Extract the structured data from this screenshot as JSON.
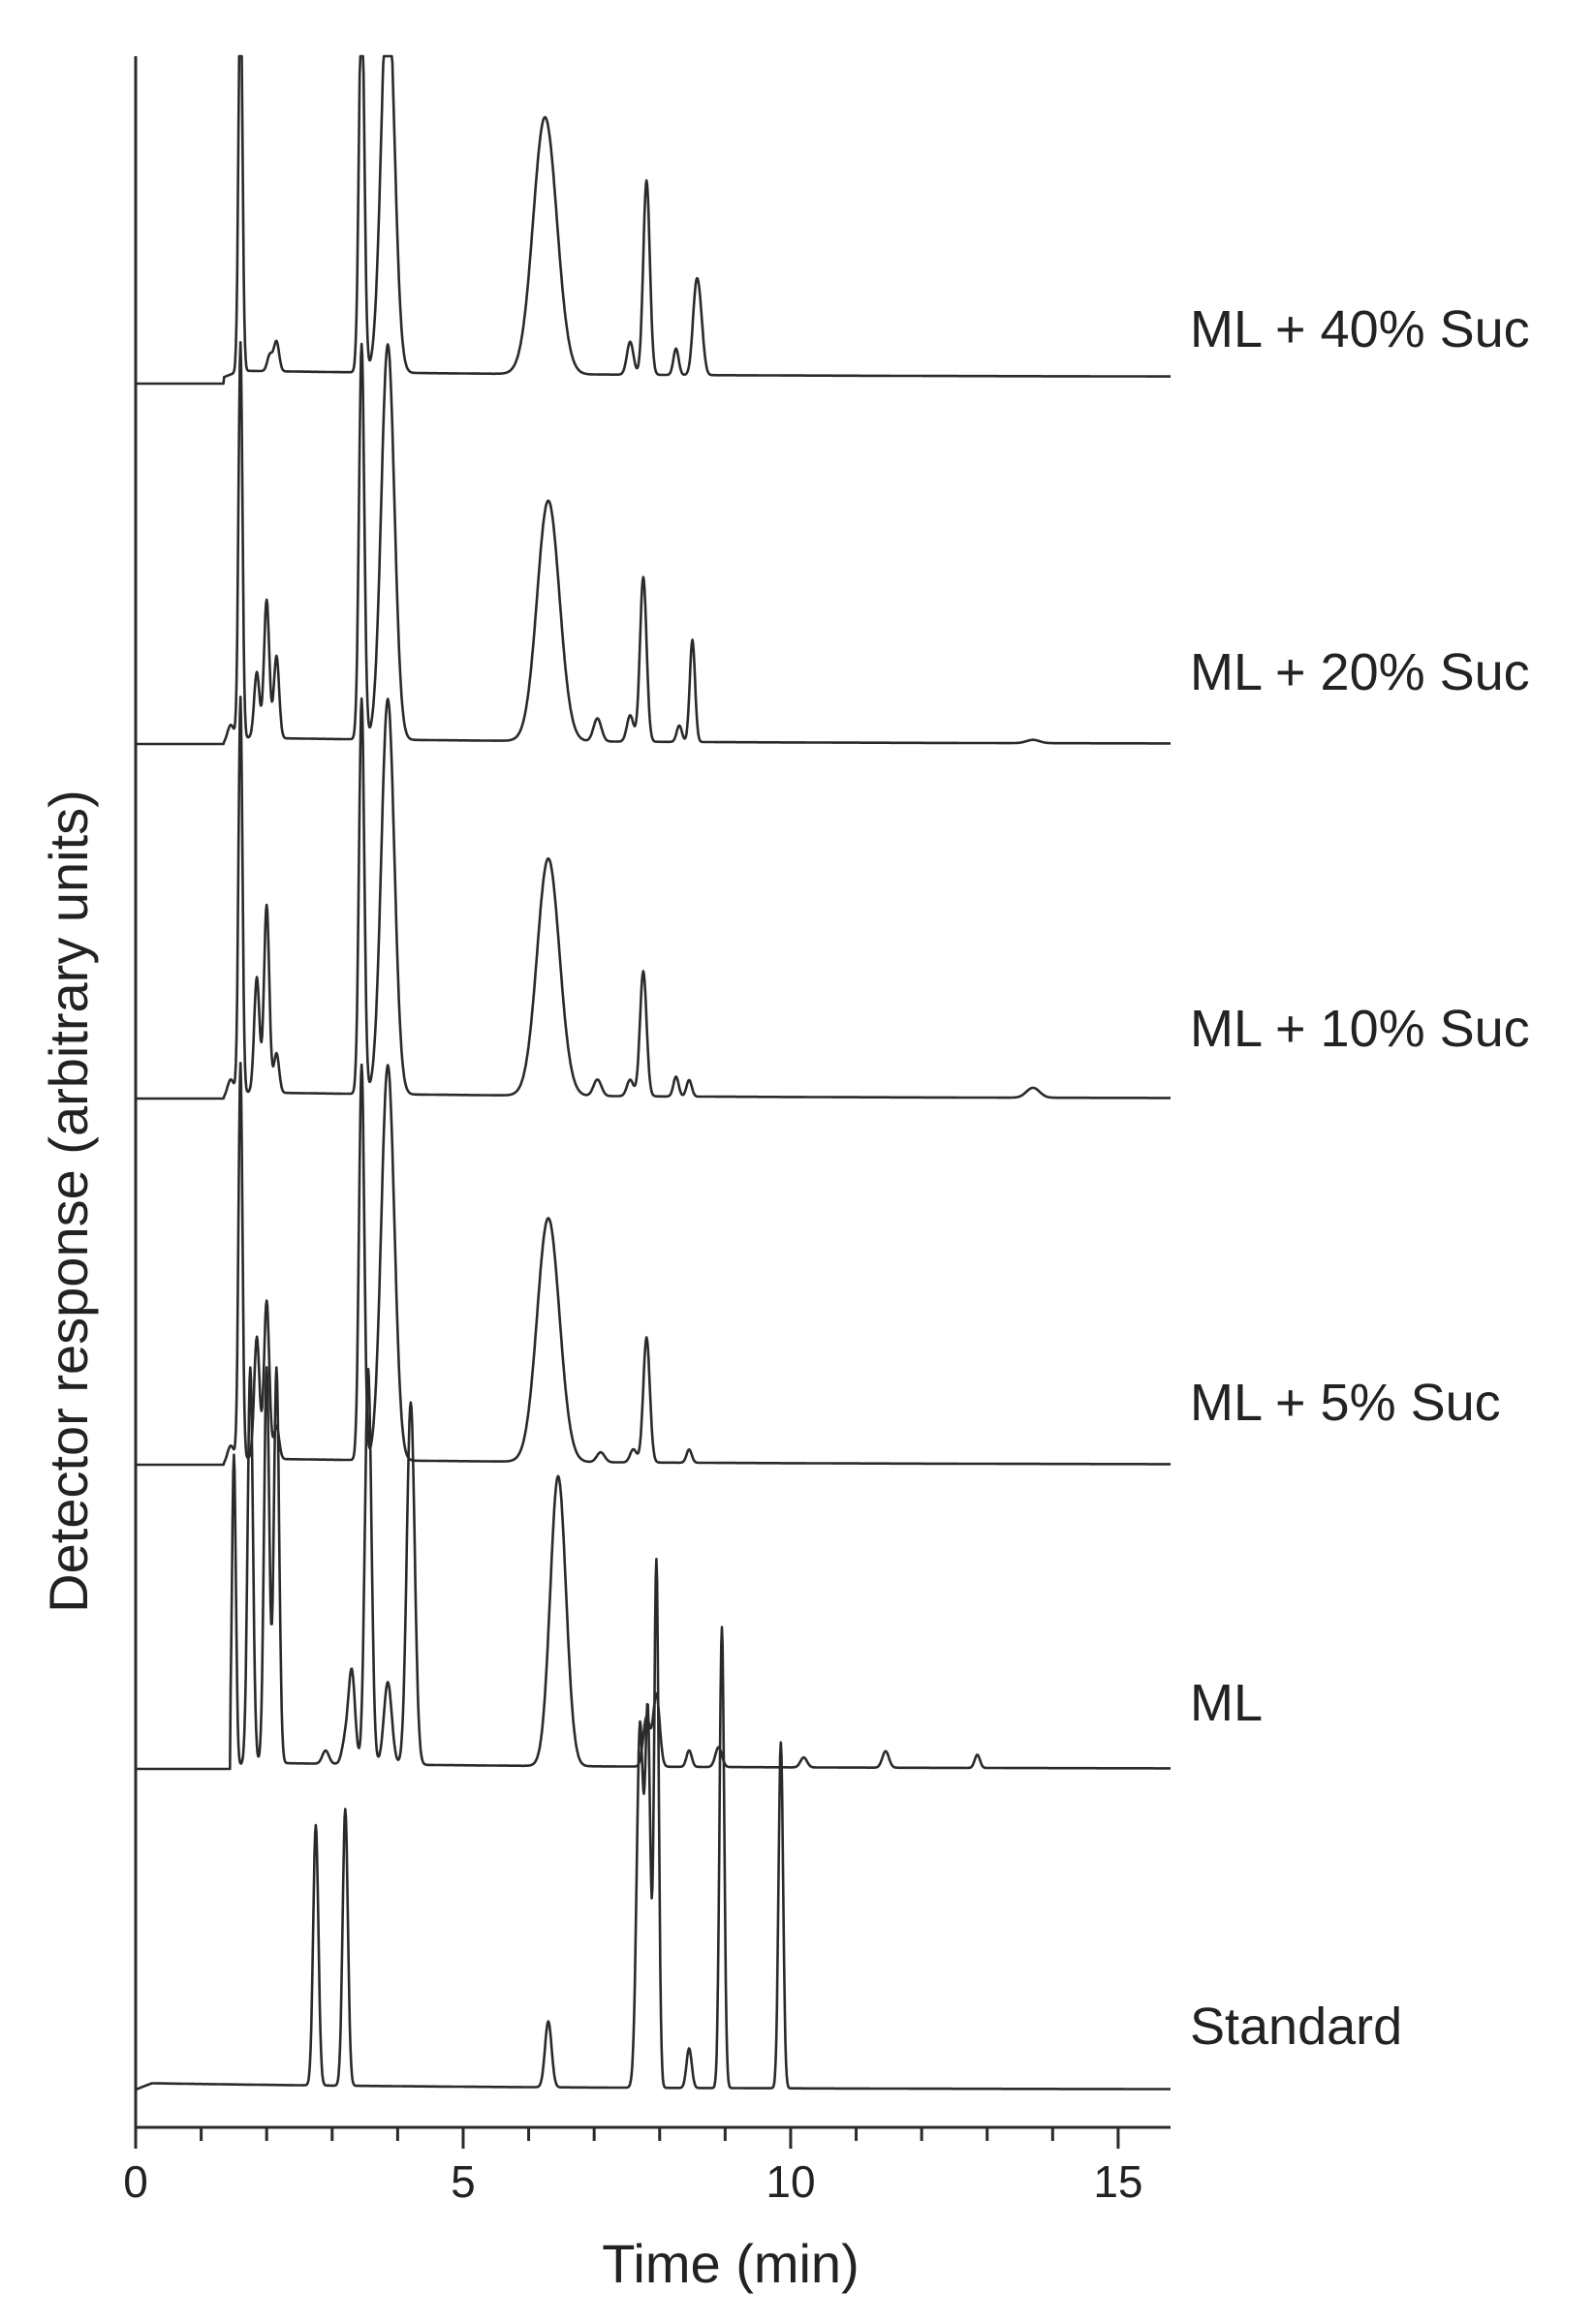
{
  "chart_data": {
    "type": "line",
    "xlabel": "Time (min)",
    "ylabel": "Detector response (arbitrary units)",
    "xlim": [
      0,
      15.8
    ],
    "x_ticks": [
      0,
      5,
      10,
      15
    ],
    "x_minor_step": 1,
    "y_scale": "arbitrary, stacked traces",
    "grid": false,
    "legend": "none (traces labeled at right end)",
    "series": [
      {
        "name": "ML + 40% Suc",
        "baseline": 0.02,
        "peaks": [
          [
            1.6,
            1.2,
            0.03
          ],
          [
            2.05,
            0.05,
            0.04
          ],
          [
            2.15,
            0.09,
            0.04
          ],
          [
            3.45,
            1.2,
            0.04
          ],
          [
            3.85,
            1.2,
            0.1
          ],
          [
            6.25,
            0.78,
            0.18
          ],
          [
            7.55,
            0.1,
            0.05
          ],
          [
            7.8,
            0.59,
            0.05
          ],
          [
            8.25,
            0.08,
            0.04
          ],
          [
            8.55,
            0.22,
            0.05
          ],
          [
            8.62,
            0.15,
            0.05
          ]
        ]
      },
      {
        "name": "ML + 20% Suc",
        "baseline": 0.0,
        "peaks": [
          [
            1.45,
            0.05,
            0.05
          ],
          [
            1.6,
            1.2,
            0.03
          ],
          [
            1.85,
            0.2,
            0.04
          ],
          [
            2.0,
            0.42,
            0.04
          ],
          [
            2.15,
            0.25,
            0.04
          ],
          [
            3.45,
            1.2,
            0.04
          ],
          [
            3.85,
            1.2,
            0.1
          ],
          [
            6.3,
            0.73,
            0.17
          ],
          [
            7.05,
            0.07,
            0.06
          ],
          [
            7.55,
            0.08,
            0.05
          ],
          [
            7.75,
            0.5,
            0.05
          ],
          [
            8.3,
            0.05,
            0.04
          ],
          [
            8.5,
            0.31,
            0.04
          ],
          [
            13.7,
            0.01,
            0.1
          ]
        ]
      },
      {
        "name": "ML + 10% Suc",
        "baseline": 0.0,
        "peaks": [
          [
            1.45,
            0.05,
            0.05
          ],
          [
            1.6,
            1.2,
            0.03
          ],
          [
            1.85,
            0.35,
            0.04
          ],
          [
            2.0,
            0.57,
            0.04
          ],
          [
            2.15,
            0.12,
            0.04
          ],
          [
            3.45,
            1.2,
            0.04
          ],
          [
            3.85,
            1.2,
            0.1
          ],
          [
            6.3,
            0.72,
            0.17
          ],
          [
            7.05,
            0.05,
            0.06
          ],
          [
            7.55,
            0.05,
            0.05
          ],
          [
            7.75,
            0.38,
            0.05
          ],
          [
            8.25,
            0.06,
            0.04
          ],
          [
            8.45,
            0.05,
            0.04
          ],
          [
            13.7,
            0.03,
            0.1
          ]
        ]
      },
      {
        "name": "ML + 5% Suc",
        "baseline": 0.0,
        "peaks": [
          [
            1.45,
            0.05,
            0.05
          ],
          [
            1.6,
            1.2,
            0.03
          ],
          [
            1.85,
            0.37,
            0.04
          ],
          [
            2.0,
            0.48,
            0.04
          ],
          [
            2.15,
            0.1,
            0.04
          ],
          [
            3.45,
            1.2,
            0.04
          ],
          [
            3.85,
            1.2,
            0.1
          ],
          [
            6.3,
            0.74,
            0.17
          ],
          [
            7.1,
            0.03,
            0.06
          ],
          [
            7.6,
            0.04,
            0.05
          ],
          [
            7.8,
            0.38,
            0.05
          ],
          [
            8.45,
            0.04,
            0.04
          ]
        ]
      },
      {
        "name": "ML",
        "baseline": 0.0,
        "peaks": [
          [
            1.5,
            0.95,
            0.03
          ],
          [
            1.75,
            1.2,
            0.04
          ],
          [
            2.0,
            1.2,
            0.04
          ],
          [
            2.15,
            1.2,
            0.04
          ],
          [
            2.9,
            0.04,
            0.05
          ],
          [
            3.2,
            0.07,
            0.05
          ],
          [
            3.3,
            0.28,
            0.05
          ],
          [
            3.55,
            1.2,
            0.05
          ],
          [
            3.85,
            0.25,
            0.06
          ],
          [
            4.2,
            1.1,
            0.06
          ],
          [
            6.45,
            0.88,
            0.12
          ],
          [
            7.8,
            0.15,
            0.05
          ],
          [
            7.95,
            0.22,
            0.05
          ],
          [
            8.45,
            0.05,
            0.04
          ],
          [
            8.9,
            0.06,
            0.05
          ],
          [
            10.2,
            0.03,
            0.05
          ],
          [
            11.45,
            0.05,
            0.05
          ],
          [
            12.85,
            0.04,
            0.04
          ]
        ]
      },
      {
        "name": "Standard",
        "baseline": 0.0,
        "peaks": [
          [
            2.75,
            0.79,
            0.04
          ],
          [
            3.2,
            0.84,
            0.04
          ],
          [
            6.3,
            0.2,
            0.05
          ],
          [
            7.7,
            1.1,
            0.05
          ],
          [
            7.82,
            1.1,
            0.04
          ],
          [
            7.95,
            1.6,
            0.035
          ],
          [
            8.45,
            0.12,
            0.04
          ],
          [
            8.95,
            1.4,
            0.035
          ],
          [
            9.85,
            1.05,
            0.035
          ]
        ]
      }
    ]
  },
  "page": {
    "x_tick_labels": [
      "0",
      "5",
      "10",
      "15"
    ],
    "x_axis_title": "Time (min)",
    "y_axis_title": "Detector response (arbitrary units)",
    "trace_labels": [
      "ML + 40% Suc",
      "ML + 20% Suc",
      "ML + 10% Suc",
      "ML + 5% Suc",
      "ML",
      "Standard"
    ]
  }
}
